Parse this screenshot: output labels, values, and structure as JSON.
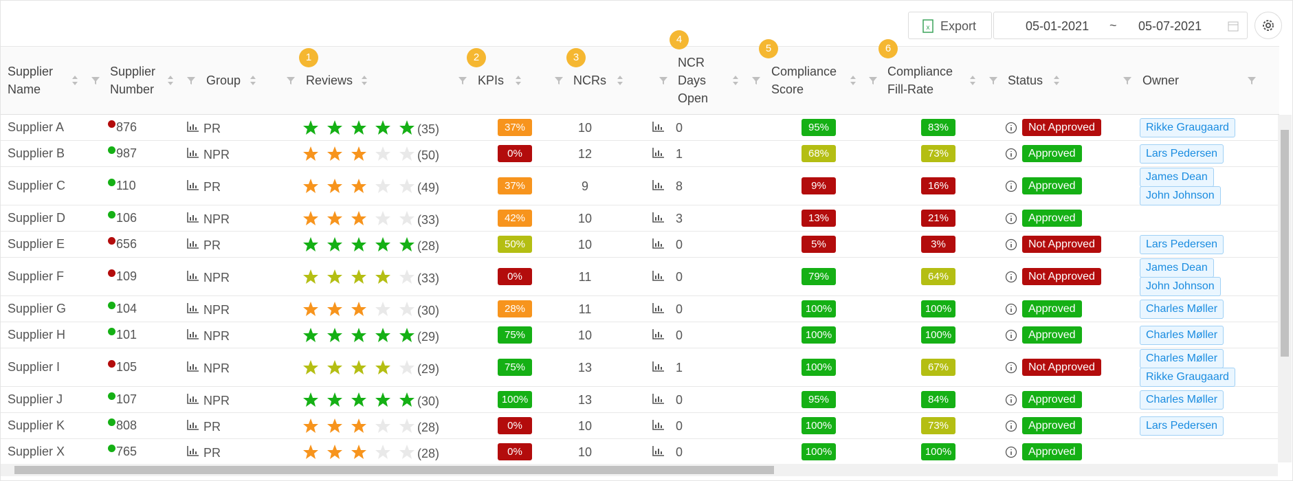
{
  "toolbar": {
    "export": "Export",
    "date_from": "05-01-2021",
    "date_separator": "~",
    "date_to": "05-07-2021"
  },
  "max_rating": 5,
  "columns": [
    {
      "lines": [
        "Supplier",
        "Name"
      ]
    },
    {
      "lines": [
        "Supplier",
        "Number"
      ]
    },
    {
      "lines": [
        "Group"
      ]
    },
    {
      "lines": [
        "Reviews"
      ],
      "badge": "1"
    },
    {
      "lines": [
        "KPIs"
      ],
      "badge": "2"
    },
    {
      "lines": [
        "NCRs"
      ],
      "badge": "3"
    },
    {
      "lines": [
        "NCR",
        "Days",
        "Open"
      ],
      "badge": "4"
    },
    {
      "lines": [
        "Compliance",
        "Score"
      ],
      "badge": "5"
    },
    {
      "lines": [
        "Compliance",
        "Fill-Rate"
      ],
      "badge": "6"
    },
    {
      "lines": [
        "Status"
      ]
    },
    {
      "lines": [
        "Owner"
      ]
    }
  ],
  "rows": [
    {
      "name": "Supplier A",
      "number": "876",
      "dot": "red",
      "group": "PR",
      "rating": 5,
      "rating_level": "green",
      "reviews": "(35)",
      "kpi": "37%",
      "kpi_level": "orange",
      "ncrs": "10",
      "ncr_days": "0",
      "score": "95%",
      "score_level": "green",
      "fill": "83%",
      "fill_level": "green",
      "status": "Not Approved",
      "status_level": "red",
      "owners": [
        "Rikke Graugaard"
      ]
    },
    {
      "name": "Supplier B",
      "number": "987",
      "dot": "green",
      "group": "NPR",
      "rating": 3,
      "rating_level": "orange",
      "reviews": "(50)",
      "kpi": "0%",
      "kpi_level": "red",
      "ncrs": "12",
      "ncr_days": "1",
      "score": "68%",
      "score_level": "olive",
      "fill": "73%",
      "fill_level": "olive",
      "status": "Approved",
      "status_level": "green",
      "owners": [
        "Lars Pedersen"
      ]
    },
    {
      "name": "Supplier C",
      "number": "110",
      "dot": "green",
      "group": "PR",
      "rating": 3,
      "rating_level": "orange",
      "reviews": "(49)",
      "kpi": "37%",
      "kpi_level": "orange",
      "ncrs": "9",
      "ncr_days": "8",
      "score": "9%",
      "score_level": "red",
      "fill": "16%",
      "fill_level": "red",
      "status": "Approved",
      "status_level": "green",
      "owners": [
        "James Dean",
        "John Johnson"
      ]
    },
    {
      "name": "Supplier D",
      "number": "106",
      "dot": "green",
      "group": "NPR",
      "rating": 3,
      "rating_level": "orange",
      "reviews": "(33)",
      "kpi": "42%",
      "kpi_level": "orange",
      "ncrs": "10",
      "ncr_days": "3",
      "score": "13%",
      "score_level": "red",
      "fill": "21%",
      "fill_level": "red",
      "status": "Approved",
      "status_level": "green",
      "owners": []
    },
    {
      "name": "Supplier E",
      "number": "656",
      "dot": "red",
      "group": "PR",
      "rating": 5,
      "rating_level": "green",
      "reviews": "(28)",
      "kpi": "50%",
      "kpi_level": "olive",
      "ncrs": "10",
      "ncr_days": "0",
      "score": "5%",
      "score_level": "red",
      "fill": "3%",
      "fill_level": "red",
      "status": "Not Approved",
      "status_level": "red",
      "owners": [
        "Lars Pedersen"
      ]
    },
    {
      "name": "Supplier F",
      "number": "109",
      "dot": "red",
      "group": "NPR",
      "rating": 4,
      "rating_level": "olive",
      "reviews": "(33)",
      "kpi": "0%",
      "kpi_level": "red",
      "ncrs": "11",
      "ncr_days": "0",
      "score": "79%",
      "score_level": "green",
      "fill": "64%",
      "fill_level": "olive",
      "status": "Not Approved",
      "status_level": "red",
      "owners": [
        "James Dean",
        "John Johnson"
      ]
    },
    {
      "name": "Supplier G",
      "number": "104",
      "dot": "green",
      "group": "NPR",
      "rating": 3,
      "rating_level": "orange",
      "reviews": "(30)",
      "kpi": "28%",
      "kpi_level": "orange",
      "ncrs": "11",
      "ncr_days": "0",
      "score": "100%",
      "score_level": "green",
      "fill": "100%",
      "fill_level": "green",
      "status": "Approved",
      "status_level": "green",
      "owners": [
        "Charles Møller"
      ]
    },
    {
      "name": "Supplier H",
      "number": "101",
      "dot": "green",
      "group": "NPR",
      "rating": 5,
      "rating_level": "green",
      "reviews": "(29)",
      "kpi": "75%",
      "kpi_level": "green",
      "ncrs": "10",
      "ncr_days": "0",
      "score": "100%",
      "score_level": "green",
      "fill": "100%",
      "fill_level": "green",
      "status": "Approved",
      "status_level": "green",
      "owners": [
        "Charles Møller"
      ]
    },
    {
      "name": "Supplier I",
      "number": "105",
      "dot": "red",
      "group": "NPR",
      "rating": 4,
      "rating_level": "olive",
      "reviews": "(29)",
      "kpi": "75%",
      "kpi_level": "green",
      "ncrs": "13",
      "ncr_days": "1",
      "score": "100%",
      "score_level": "green",
      "fill": "67%",
      "fill_level": "olive",
      "status": "Not Approved",
      "status_level": "red",
      "owners": [
        "Charles Møller",
        "Rikke Graugaard"
      ]
    },
    {
      "name": "Supplier J",
      "number": "107",
      "dot": "green",
      "group": "NPR",
      "rating": 5,
      "rating_level": "green",
      "reviews": "(30)",
      "kpi": "100%",
      "kpi_level": "green",
      "ncrs": "13",
      "ncr_days": "0",
      "score": "95%",
      "score_level": "green",
      "fill": "84%",
      "fill_level": "green",
      "status": "Approved",
      "status_level": "green",
      "owners": [
        "Charles Møller"
      ]
    },
    {
      "name": "Supplier K",
      "number": "808",
      "dot": "green",
      "group": "PR",
      "rating": 3,
      "rating_level": "orange",
      "reviews": "(28)",
      "kpi": "0%",
      "kpi_level": "red",
      "ncrs": "10",
      "ncr_days": "0",
      "score": "100%",
      "score_level": "green",
      "fill": "73%",
      "fill_level": "olive",
      "status": "Approved",
      "status_level": "green",
      "owners": [
        "Lars Pedersen"
      ]
    },
    {
      "name": "Supplier X",
      "number": "765",
      "dot": "green",
      "group": "PR",
      "rating": 3,
      "rating_level": "orange",
      "reviews": "(28)",
      "kpi": "0%",
      "kpi_level": "red",
      "ncrs": "10",
      "ncr_days": "0",
      "score": "100%",
      "score_level": "green",
      "fill": "100%",
      "fill_level": "green",
      "status": "Approved",
      "status_level": "green",
      "owners": []
    }
  ]
}
